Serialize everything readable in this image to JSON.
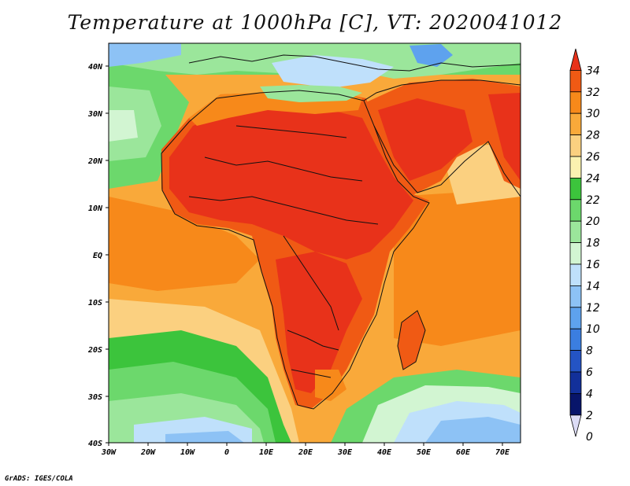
{
  "title": "Temperature at 1000hPa [C], VT: 2020041012",
  "credit": "GrADS: IGES/COLA",
  "map": {
    "lat_labels": [
      "40N",
      "30N",
      "20N",
      "10N",
      "EQ",
      "10S",
      "20S",
      "30S",
      "40S"
    ],
    "lon_labels": [
      "30W",
      "20W",
      "10W",
      "0",
      "10E",
      "20E",
      "30E",
      "40E",
      "50E",
      "60E",
      "70E"
    ]
  },
  "colorbar": {
    "levels": [
      "34",
      "32",
      "30",
      "28",
      "26",
      "24",
      "22",
      "20",
      "18",
      "16",
      "14",
      "12",
      "10",
      "8",
      "6",
      "4",
      "2",
      "0"
    ],
    "colors": [
      "#e8321a",
      "#f05a14",
      "#f7891a",
      "#f9a93a",
      "#fbd080",
      "#fbf2b0",
      "#3cc43c",
      "#6cd86c",
      "#9be69b",
      "#d2f5d2",
      "#bfe0fb",
      "#8dc2f5",
      "#5ea2ee",
      "#3b7ee0",
      "#2454c4",
      "#12309a",
      "#08156a",
      "#dcdcf5"
    ]
  }
}
